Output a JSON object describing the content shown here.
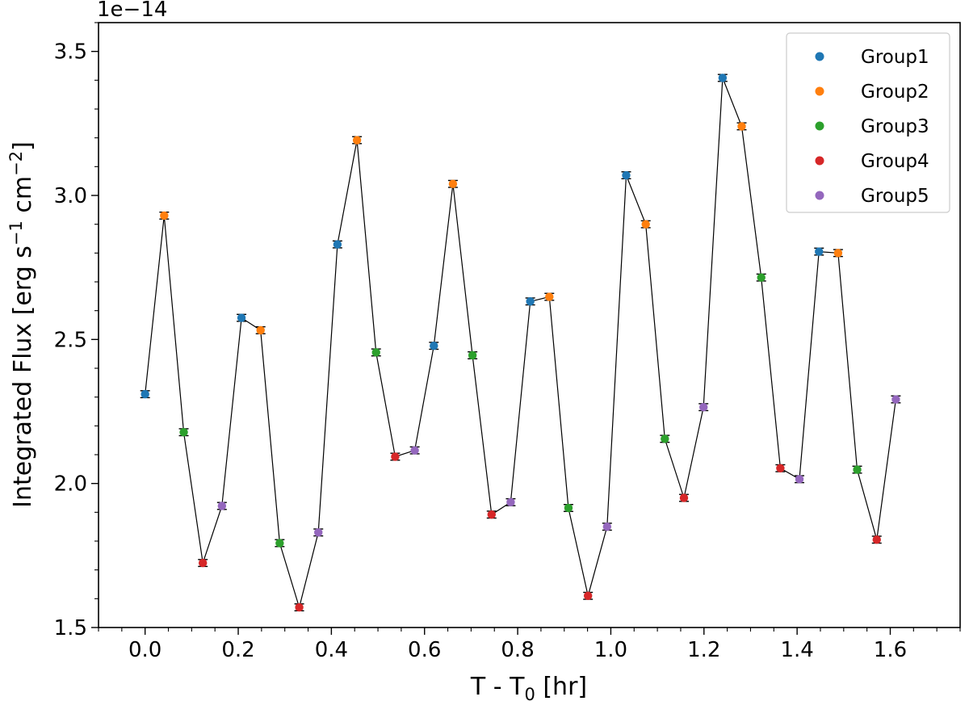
{
  "chart_data": {
    "type": "scatter",
    "title": "",
    "xlabel": "T - T",
    "xlabel_sub": "0",
    "xlabel_unit": " [hr]",
    "ylabel": "Integrated Flux [erg s",
    "ylabel_sup1": "−1",
    "ylabel_mid": " cm",
    "ylabel_sup2": "−2",
    "ylabel_end": "]",
    "offset_text": "1e−14",
    "xlim": [
      -0.1,
      1.75
    ],
    "ylim": [
      1.5,
      3.6
    ],
    "xticks": [
      0.0,
      0.2,
      0.4,
      0.6,
      0.8,
      1.0,
      1.2,
      1.4,
      1.6
    ],
    "xtick_labels": [
      "0.0",
      "0.2",
      "0.4",
      "0.6",
      "0.8",
      "1.0",
      "1.2",
      "1.4",
      "1.6"
    ],
    "yticks": [
      1.5,
      2.0,
      2.5,
      3.0,
      3.5
    ],
    "ytick_labels": [
      "1.5",
      "2.0",
      "2.5",
      "3.0",
      "3.5"
    ],
    "grid": false,
    "legend_position": "top-right",
    "line_color": "#000000",
    "series": [
      {
        "name": "Group1",
        "color": "#1f77b4",
        "x": [
          0.0,
          0.207,
          0.413,
          0.62,
          0.827,
          1.033,
          1.24,
          1.447
        ],
        "y": [
          2.31,
          2.575,
          2.83,
          2.478,
          2.632,
          3.07,
          3.408,
          2.805
        ]
      },
      {
        "name": "Group2",
        "color": "#ff7f0e",
        "x": [
          0.041,
          0.248,
          0.455,
          0.661,
          0.868,
          1.075,
          1.281,
          1.488
        ],
        "y": [
          2.93,
          2.532,
          3.192,
          3.04,
          2.648,
          2.9,
          3.24,
          2.8
        ]
      },
      {
        "name": "Group3",
        "color": "#2ca02c",
        "x": [
          0.083,
          0.289,
          0.496,
          0.703,
          0.909,
          1.116,
          1.323,
          1.529
        ],
        "y": [
          2.178,
          1.793,
          2.455,
          2.445,
          1.915,
          2.155,
          2.715,
          2.048
        ]
      },
      {
        "name": "Group4",
        "color": "#d62728",
        "x": [
          0.124,
          0.331,
          0.537,
          0.744,
          0.951,
          1.157,
          1.364,
          1.571
        ],
        "y": [
          1.724,
          1.57,
          2.093,
          1.892,
          1.61,
          1.95,
          2.053,
          1.805
        ]
      },
      {
        "name": "Group5",
        "color": "#9467bd",
        "x": [
          0.165,
          0.372,
          0.579,
          0.785,
          0.992,
          1.199,
          1.405,
          1.612
        ],
        "y": [
          1.922,
          1.83,
          2.115,
          1.935,
          1.85,
          2.265,
          2.015,
          2.292
        ]
      }
    ],
    "error_y": 0.012
  }
}
